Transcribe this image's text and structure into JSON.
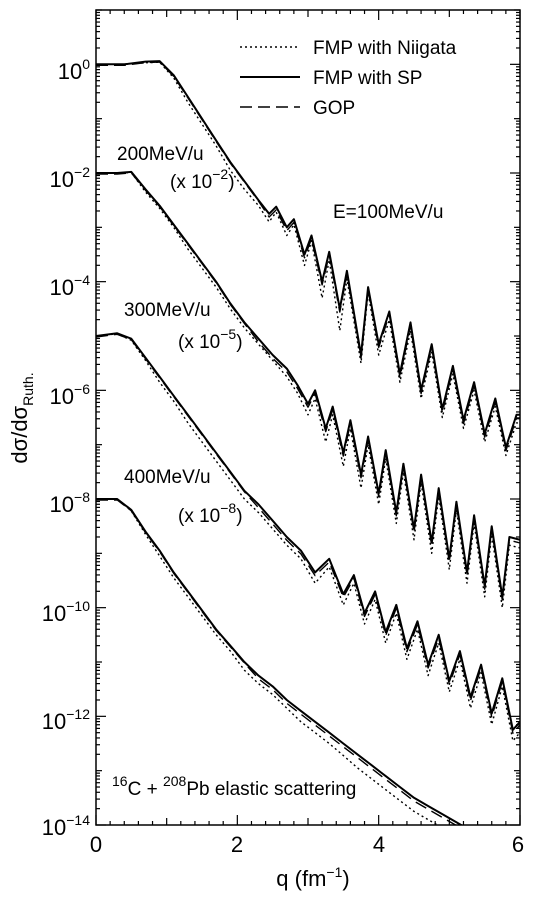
{
  "chart_data": {
    "type": "line",
    "title": "",
    "xlabel": "q (fm",
    "xlabel_sup": "−1",
    "xlabel_close": ")",
    "ylabel_main": "dσ/dσ",
    "ylabel_sub": "Ruth.",
    "xlim": [
      0,
      6
    ],
    "ylim_exp": [
      -14,
      1
    ],
    "y_scale": "log",
    "grid": false,
    "legend_position": "top-right",
    "x_ticks": [
      "0",
      "2",
      "4",
      "6"
    ],
    "y_ticks": [
      {
        "base": "10",
        "exp": "0"
      },
      {
        "base": "10",
        "exp": "−2"
      },
      {
        "base": "10",
        "exp": "−4"
      },
      {
        "base": "10",
        "exp": "−6"
      },
      {
        "base": "10",
        "exp": "−8"
      },
      {
        "base": "10",
        "exp": "−10"
      },
      {
        "base": "10",
        "exp": "−12"
      },
      {
        "base": "10",
        "exp": "−14"
      }
    ],
    "legend": [
      {
        "label": "FMP with Niigata",
        "style": "dotted"
      },
      {
        "label": "FMP with SP",
        "style": "solid"
      },
      {
        "label": "GOP",
        "style": "dashed"
      }
    ],
    "annotations": {
      "e100": "E=100MeV/u",
      "e200": "200MeV/u",
      "e200_factor_open": "(x 10",
      "e200_factor_exp": "−2",
      "e200_factor_close": ")",
      "e300": "300MeV/u",
      "e300_factor_open": "(x 10",
      "e300_factor_exp": "−5",
      "e300_factor_close": ")",
      "e400": "400MeV/u",
      "e400_factor_open": "(x 10",
      "e400_factor_exp": "−8",
      "e400_factor_close": ")",
      "reaction_a_sup": "16",
      "reaction_a": "C + ",
      "reaction_b_sup": "208",
      "reaction_b": "Pb elastic scattering"
    },
    "curves": [
      {
        "energy": "E=100MeV/u",
        "scale": 1,
        "x": [
          0.0,
          0.4,
          0.7,
          0.9,
          1.1,
          1.3,
          1.5,
          1.7,
          1.9,
          2.1,
          2.3,
          2.45,
          2.55,
          2.7,
          2.8,
          2.95,
          3.05,
          3.2,
          3.3,
          3.45,
          3.55,
          3.75,
          3.85,
          4.0,
          4.15,
          4.3,
          4.45,
          4.6,
          4.75,
          4.9,
          5.05,
          5.2,
          5.35,
          5.5,
          5.65,
          5.8,
          5.95,
          6.0
        ],
        "logy": [
          0.0,
          0.0,
          0.05,
          0.06,
          -0.2,
          -0.6,
          -1.0,
          -1.4,
          -1.8,
          -2.15,
          -2.5,
          -2.75,
          -2.62,
          -3.0,
          -2.85,
          -3.5,
          -3.15,
          -4.0,
          -3.45,
          -4.5,
          -3.8,
          -5.35,
          -4.1,
          -5.15,
          -4.55,
          -5.7,
          -4.75,
          -6.0,
          -5.15,
          -6.35,
          -5.55,
          -6.55,
          -5.85,
          -6.8,
          -6.15,
          -7.05,
          -6.45,
          -6.45
        ],
        "logy_dotted": [
          0.0,
          0.0,
          0.03,
          0.04,
          -0.25,
          -0.7,
          -1.1,
          -1.5,
          -1.95,
          -2.3,
          -2.6,
          -2.9,
          -2.72,
          -3.15,
          -2.95,
          -3.7,
          -3.25,
          -4.3,
          -3.6,
          -4.9,
          -3.95,
          -5.5,
          -4.2,
          -5.35,
          -4.7,
          -5.85,
          -4.9,
          -6.15,
          -5.3,
          -6.5,
          -5.7,
          -6.7,
          -6.0,
          -6.95,
          -6.3,
          -7.2,
          -6.6,
          -6.6
        ]
      },
      {
        "energy": "200MeV/u",
        "scale": 0.01,
        "x": [
          0.0,
          0.3,
          0.5,
          0.7,
          0.9,
          1.1,
          1.3,
          1.5,
          1.7,
          1.9,
          2.1,
          2.3,
          2.5,
          2.7,
          2.85,
          3.0,
          3.1,
          3.25,
          3.35,
          3.5,
          3.6,
          3.75,
          3.85,
          4.0,
          4.1,
          4.25,
          4.35,
          4.5,
          4.6,
          4.75,
          4.85,
          5.0,
          5.1,
          5.25,
          5.35,
          5.5,
          5.6,
          5.75,
          5.85,
          6.0
        ],
        "logy": [
          -2.0,
          -2.0,
          -1.98,
          -2.3,
          -2.6,
          -2.95,
          -3.3,
          -3.65,
          -4.0,
          -4.4,
          -4.75,
          -5.05,
          -5.35,
          -5.6,
          -5.9,
          -6.25,
          -6.0,
          -6.7,
          -6.3,
          -7.15,
          -6.55,
          -7.55,
          -6.85,
          -7.9,
          -7.1,
          -8.25,
          -7.35,
          -8.55,
          -7.55,
          -8.8,
          -7.8,
          -9.1,
          -8.05,
          -9.35,
          -8.3,
          -9.6,
          -8.5,
          -9.8,
          -8.7,
          -8.75
        ],
        "logy_dotted": [
          -2.0,
          -2.0,
          -1.99,
          -2.35,
          -2.65,
          -3.0,
          -3.4,
          -3.75,
          -4.1,
          -4.5,
          -4.85,
          -5.15,
          -5.45,
          -5.75,
          -6.05,
          -6.45,
          -6.15,
          -6.95,
          -6.45,
          -7.4,
          -6.7,
          -7.8,
          -7.0,
          -8.1,
          -7.25,
          -8.45,
          -7.5,
          -8.75,
          -7.7,
          -9.0,
          -7.95,
          -9.3,
          -8.2,
          -9.55,
          -8.45,
          -9.8,
          -8.65,
          -10.0,
          -8.85,
          -8.9
        ]
      },
      {
        "energy": "300MeV/u",
        "scale": 1e-05,
        "x": [
          0.0,
          0.3,
          0.5,
          0.7,
          0.9,
          1.1,
          1.3,
          1.5,
          1.7,
          1.9,
          2.1,
          2.3,
          2.5,
          2.7,
          2.9,
          3.1,
          3.3,
          3.5,
          3.65,
          3.8,
          3.95,
          4.1,
          4.25,
          4.4,
          4.55,
          4.7,
          4.85,
          5.0,
          5.15,
          5.3,
          5.45,
          5.6,
          5.75,
          5.9,
          6.0
        ],
        "logy": [
          -5.0,
          -4.95,
          -5.05,
          -5.4,
          -5.75,
          -6.1,
          -6.45,
          -6.8,
          -7.15,
          -7.5,
          -7.85,
          -8.1,
          -8.4,
          -8.7,
          -8.95,
          -9.35,
          -9.1,
          -9.75,
          -9.4,
          -10.1,
          -9.7,
          -10.45,
          -9.95,
          -10.75,
          -10.25,
          -11.05,
          -10.5,
          -11.35,
          -10.8,
          -11.65,
          -11.05,
          -11.95,
          -11.3,
          -12.25,
          -12.1
        ],
        "logy_dotted": [
          -5.0,
          -4.96,
          -5.08,
          -5.45,
          -5.85,
          -6.2,
          -6.6,
          -6.95,
          -7.3,
          -7.65,
          -8.0,
          -8.25,
          -8.55,
          -8.85,
          -9.1,
          -9.55,
          -9.25,
          -9.95,
          -9.55,
          -10.3,
          -9.85,
          -10.65,
          -10.1,
          -10.95,
          -10.4,
          -11.25,
          -10.65,
          -11.55,
          -10.95,
          -11.85,
          -11.2,
          -12.15,
          -11.45,
          -12.45,
          -12.3
        ]
      },
      {
        "energy": "400MeV/u",
        "scale": 1e-08,
        "x": [
          0.0,
          0.3,
          0.5,
          0.7,
          0.9,
          1.1,
          1.3,
          1.5,
          1.7,
          1.9,
          2.1,
          2.3,
          2.5,
          2.7,
          2.9,
          3.1,
          3.3,
          3.5,
          3.7,
          3.9,
          4.1,
          4.3,
          4.5,
          4.7,
          4.9,
          5.1,
          5.3,
          5.5,
          5.7,
          5.9,
          6.0
        ],
        "logy": [
          -8.0,
          -8.0,
          -8.2,
          -8.6,
          -8.95,
          -9.35,
          -9.7,
          -10.05,
          -10.4,
          -10.7,
          -11.0,
          -11.25,
          -11.45,
          -11.7,
          -11.9,
          -12.1,
          -12.3,
          -12.5,
          -12.7,
          -12.9,
          -13.1,
          -13.3,
          -13.5,
          -13.65,
          -13.8,
          -13.95,
          -14.1,
          -14.25,
          -14.4,
          -14.55,
          -14.6
        ],
        "logy_dotted": [
          -8.0,
          -8.0,
          -8.22,
          -8.65,
          -9.05,
          -9.45,
          -9.8,
          -10.15,
          -10.5,
          -10.8,
          -11.15,
          -11.4,
          -11.6,
          -11.85,
          -12.1,
          -12.3,
          -12.5,
          -12.72,
          -12.95,
          -13.15,
          -13.35,
          -13.55,
          -13.75,
          -13.9,
          -14.05,
          -14.2,
          -14.35,
          -14.5,
          -14.65,
          -14.8,
          -14.85
        ]
      }
    ]
  }
}
